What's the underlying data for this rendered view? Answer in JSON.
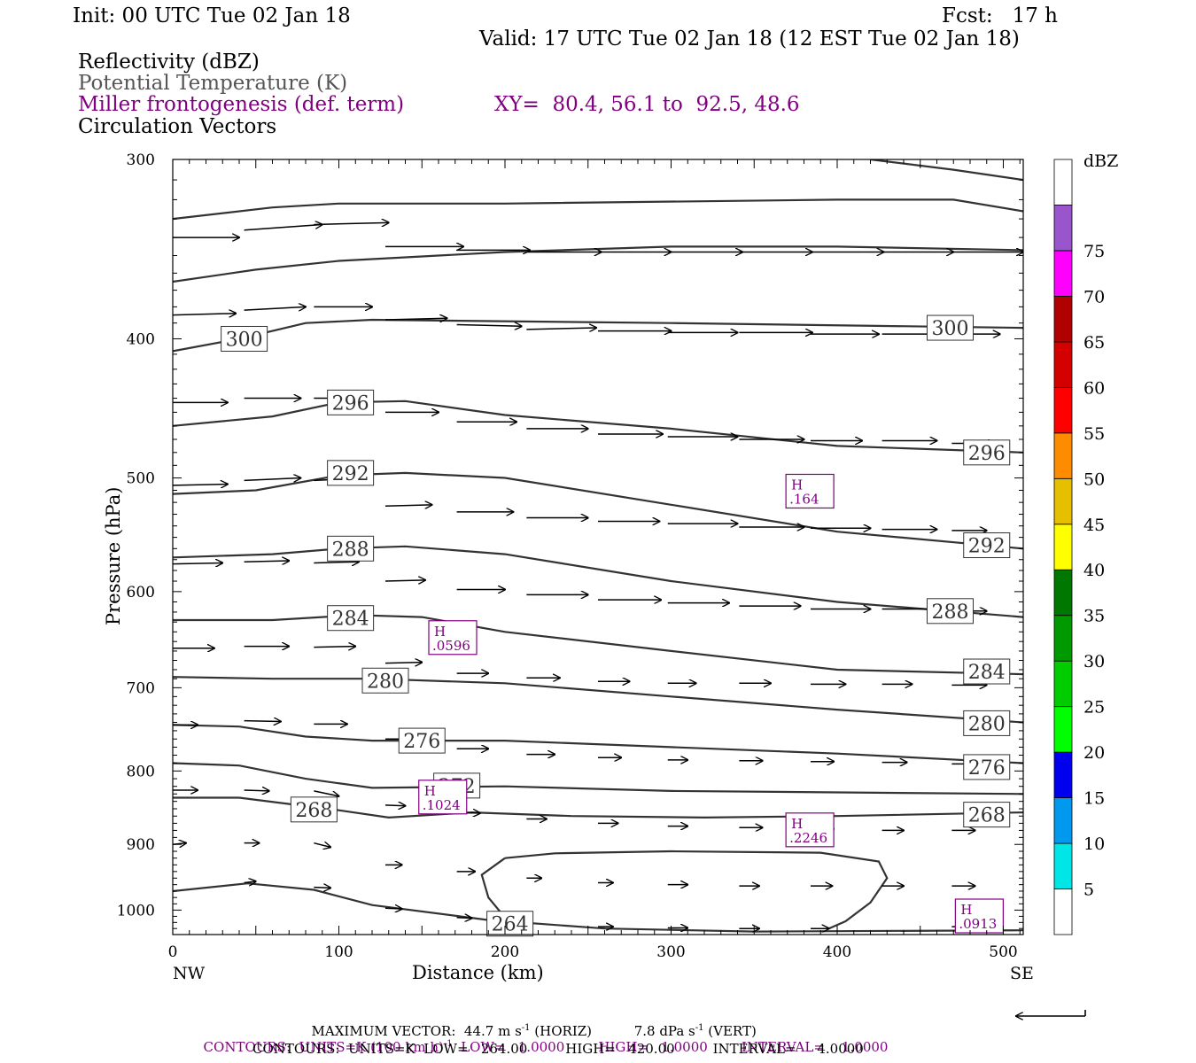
{
  "header": {
    "init": "Init: 00 UTC Tue 02 Jan 18",
    "fcst": "Fcst:   17 h",
    "valid": "Valid: 17 UTC Tue 02 Jan 18 (12 EST Tue 02 Jan 18)",
    "field1": "Reflectivity (dBZ)",
    "field2": "Potential Temperature (K)",
    "field3": "Miller frontogenesis (def. term)",
    "xy": "XY=  80.4, 56.1 to  92.5, 48.6",
    "field4": "Circulation Vectors"
  },
  "footer": {
    "max_vector_prefix": "MAXIMUM VECTOR:  44.7 m s",
    "max_vector_mid": " (HORIZ)          7.8 dPa s",
    "max_vector_suffix": " (VERT)",
    "max_vector_exp": "-1",
    "contours1_prefix": "CONTOURS:  UNITS=K (100 km h)",
    "contours1_exp": "-1",
    "contours1_suffix": "  LOW=   1.0000        HIGH=   1.0000        INTERVAL=    1.0000",
    "contours2": "CONTOURS:  UNITS=K  LOW=   264.00         HIGH=   420.00         INTERVAL=     4.0000"
  },
  "chart_data": {
    "type": "cross-section",
    "xlabel": "Distance (km)",
    "ylabel": "Pressure (hPa)",
    "xlim": [
      0,
      512
    ],
    "ylim": [
      1040,
      300
    ],
    "y_scale": "log",
    "x_ticks": [
      0,
      100,
      200,
      300,
      400,
      500
    ],
    "y_ticks": [
      300,
      400,
      500,
      600,
      700,
      800,
      900,
      1000
    ],
    "x_end_labels": {
      "left": "NW",
      "right": "SE"
    },
    "colorbar": {
      "title": "dBZ",
      "labels": [
        "5",
        "10",
        "15",
        "20",
        "25",
        "30",
        "35",
        "40",
        "45",
        "50",
        "55",
        "60",
        "65",
        "70",
        "75"
      ],
      "colors": [
        "#ffffff",
        "#00e5e5",
        "#0099ee",
        "#0000ee",
        "#00ff00",
        "#00cc00",
        "#009900",
        "#007700",
        "#ffff00",
        "#e6bf00",
        "#ff8c00",
        "#ff0000",
        "#d40000",
        "#b00000",
        "#ff00ff",
        "#9955cc",
        "#ffffff"
      ]
    },
    "isentropes": [
      {
        "theta": 268,
        "points": [
          [
            0,
            835
          ],
          [
            40,
            835
          ],
          [
            100,
            852
          ],
          [
            130,
            862
          ],
          [
            180,
            855
          ],
          [
            240,
            860
          ],
          [
            320,
            862
          ],
          [
            400,
            860
          ],
          [
            512,
            855
          ]
        ]
      },
      {
        "theta": 272,
        "points": [
          [
            0,
            790
          ],
          [
            40,
            793
          ],
          [
            80,
            810
          ],
          [
            120,
            822
          ],
          [
            200,
            820
          ],
          [
            300,
            826
          ],
          [
            512,
            830
          ]
        ]
      },
      {
        "theta": 276,
        "points": [
          [
            0,
            743
          ],
          [
            40,
            745
          ],
          [
            80,
            757
          ],
          [
            120,
            762
          ],
          [
            200,
            762
          ],
          [
            300,
            770
          ],
          [
            400,
            778
          ],
          [
            512,
            790
          ]
        ]
      },
      {
        "theta": 280,
        "points": [
          [
            0,
            688
          ],
          [
            60,
            690
          ],
          [
            120,
            690
          ],
          [
            200,
            695
          ],
          [
            300,
            710
          ],
          [
            400,
            725
          ],
          [
            512,
            740
          ]
        ]
      },
      {
        "theta": 284,
        "points": [
          [
            0,
            628
          ],
          [
            60,
            628
          ],
          [
            110,
            623
          ],
          [
            150,
            625
          ],
          [
            200,
            640
          ],
          [
            300,
            660
          ],
          [
            400,
            680
          ],
          [
            512,
            685
          ]
        ]
      },
      {
        "theta": 288,
        "points": [
          [
            0,
            568
          ],
          [
            60,
            565
          ],
          [
            100,
            560
          ],
          [
            140,
            558
          ],
          [
            200,
            565
          ],
          [
            300,
            590
          ],
          [
            400,
            610
          ],
          [
            512,
            625
          ]
        ]
      },
      {
        "theta": 292,
        "points": [
          [
            0,
            513
          ],
          [
            50,
            510
          ],
          [
            100,
            498
          ],
          [
            140,
            496
          ],
          [
            200,
            500
          ],
          [
            300,
            522
          ],
          [
            400,
            545
          ],
          [
            512,
            560
          ]
        ]
      },
      {
        "theta": 296,
        "points": [
          [
            0,
            460
          ],
          [
            60,
            453
          ],
          [
            100,
            443
          ],
          [
            140,
            442
          ],
          [
            200,
            452
          ],
          [
            300,
            462
          ],
          [
            400,
            475
          ],
          [
            512,
            480
          ]
        ]
      },
      {
        "theta": 300,
        "points": [
          [
            0,
            408
          ],
          [
            40,
            400
          ],
          [
            80,
            390
          ],
          [
            120,
            388
          ],
          [
            300,
            390
          ],
          [
            512,
            393
          ]
        ]
      },
      {
        "theta": 304,
        "points": [
          [
            0,
            365
          ],
          [
            50,
            358
          ],
          [
            100,
            353
          ],
          [
            200,
            348
          ],
          [
            300,
            345
          ],
          [
            400,
            345
          ],
          [
            512,
            347
          ]
        ]
      },
      {
        "theta": 308,
        "points": [
          [
            0,
            330
          ],
          [
            60,
            324
          ],
          [
            100,
            322
          ],
          [
            200,
            322
          ],
          [
            400,
            320
          ],
          [
            470,
            320
          ],
          [
            512,
            326
          ]
        ]
      },
      {
        "theta": 312,
        "points": [
          [
            420,
            300
          ],
          [
            470,
            305
          ],
          [
            512,
            310
          ]
        ]
      },
      {
        "theta": 264,
        "points": [
          [
            0,
            970
          ],
          [
            45,
            958
          ],
          [
            85,
            968
          ],
          [
            120,
            992
          ],
          [
            190,
            1016
          ],
          [
            260,
            1030
          ],
          [
            350,
            1035
          ],
          [
            512,
            1033
          ]
        ]
      },
      {
        "theta": 264,
        "points": [
          [
            200,
            920
          ],
          [
            230,
            913
          ],
          [
            300,
            910
          ],
          [
            390,
            912
          ],
          [
            425,
            925
          ],
          [
            430,
            950
          ],
          [
            420,
            988
          ],
          [
            405,
            1018
          ],
          [
            395,
            1030
          ]
        ]
      },
      {
        "theta": 264,
        "points": [
          [
            200,
            920
          ],
          [
            186,
            945
          ],
          [
            190,
            980
          ],
          [
            200,
            1012
          ]
        ]
      }
    ],
    "isentrope_labels": [
      {
        "text": "300",
        "x": 43,
        "p": 400
      },
      {
        "text": "300",
        "x": 468,
        "p": 393
      },
      {
        "text": "296",
        "x": 107,
        "p": 443
      },
      {
        "text": "296",
        "x": 490,
        "p": 480
      },
      {
        "text": "292",
        "x": 107,
        "p": 496
      },
      {
        "text": "292",
        "x": 490,
        "p": 557
      },
      {
        "text": "288",
        "x": 107,
        "p": 560
      },
      {
        "text": "288",
        "x": 468,
        "p": 619
      },
      {
        "text": "284",
        "x": 107,
        "p": 626
      },
      {
        "text": "284",
        "x": 490,
        "p": 682
      },
      {
        "text": "280",
        "x": 128,
        "p": 692
      },
      {
        "text": "280",
        "x": 490,
        "p": 741
      },
      {
        "text": "276",
        "x": 150,
        "p": 762
      },
      {
        "text": "276",
        "x": 490,
        "p": 795
      },
      {
        "text": "272",
        "x": 171,
        "p": 819
      },
      {
        "text": "268",
        "x": 85,
        "p": 851
      },
      {
        "text": "268",
        "x": 490,
        "p": 858
      },
      {
        "text": "264",
        "x": 203,
        "p": 1022
      }
    ],
    "frontogenesis_highs": [
      {
        "label": "H",
        "value": ".164",
        "x": 383,
        "p": 510
      },
      {
        "label": "H",
        "value": ".0596",
        "x": 168,
        "p": 645
      },
      {
        "label": "H",
        "value": ".1024",
        "x": 162,
        "p": 833
      },
      {
        "label": "H",
        "value": ".2246",
        "x": 383,
        "p": 878
      },
      {
        "label": "H",
        "value": ".0913",
        "x": 485,
        "p": 1008
      }
    ],
    "vectors": [
      [
        0,
        340,
        40,
        340
      ],
      [
        43,
        336,
        90,
        333
      ],
      [
        85,
        333,
        130,
        332
      ],
      [
        128,
        345,
        175,
        345
      ],
      [
        171,
        347,
        215,
        347
      ],
      [
        213,
        348,
        258,
        348
      ],
      [
        256,
        348,
        300,
        348
      ],
      [
        298,
        348,
        343,
        348
      ],
      [
        341,
        348,
        385,
        348
      ],
      [
        384,
        348,
        428,
        348
      ],
      [
        427,
        348,
        470,
        348
      ],
      [
        469,
        348,
        512,
        348
      ],
      [
        0,
        385,
        38,
        384
      ],
      [
        43,
        382,
        80,
        380
      ],
      [
        85,
        380,
        120,
        380
      ],
      [
        128,
        388,
        165,
        387
      ],
      [
        171,
        391,
        210,
        392
      ],
      [
        213,
        394,
        255,
        393
      ],
      [
        256,
        395,
        300,
        395
      ],
      [
        298,
        396,
        340,
        396
      ],
      [
        341,
        396,
        385,
        396
      ],
      [
        384,
        397,
        425,
        397
      ],
      [
        427,
        397,
        470,
        397
      ],
      [
        469,
        397,
        498,
        397
      ],
      [
        0,
        443,
        33,
        443
      ],
      [
        43,
        440,
        77,
        440
      ],
      [
        85,
        440,
        120,
        440
      ],
      [
        128,
        450,
        160,
        450
      ],
      [
        171,
        457,
        207,
        457
      ],
      [
        213,
        462,
        250,
        462
      ],
      [
        256,
        466,
        295,
        466
      ],
      [
        298,
        468,
        340,
        468
      ],
      [
        341,
        470,
        380,
        470
      ],
      [
        384,
        471,
        415,
        471
      ],
      [
        427,
        471,
        460,
        471
      ],
      [
        469,
        473,
        495,
        473
      ],
      [
        0,
        506,
        33,
        505
      ],
      [
        43,
        502,
        77,
        500
      ],
      [
        85,
        502,
        120,
        500
      ],
      [
        128,
        523,
        156,
        522
      ],
      [
        171,
        528,
        205,
        528
      ],
      [
        213,
        533,
        250,
        533
      ],
      [
        256,
        536,
        293,
        536
      ],
      [
        298,
        538,
        340,
        538
      ],
      [
        341,
        541,
        380,
        541
      ],
      [
        384,
        542,
        420,
        542
      ],
      [
        427,
        543,
        460,
        543
      ],
      [
        469,
        544,
        490,
        544
      ],
      [
        0,
        574,
        30,
        573
      ],
      [
        43,
        572,
        70,
        571
      ],
      [
        85,
        573,
        112,
        572
      ],
      [
        128,
        590,
        152,
        589
      ],
      [
        171,
        598,
        200,
        598
      ],
      [
        213,
        603,
        250,
        603
      ],
      [
        256,
        608,
        294,
        608
      ],
      [
        298,
        611,
        335,
        611
      ],
      [
        341,
        614,
        378,
        614
      ],
      [
        384,
        617,
        420,
        617
      ],
      [
        427,
        617,
        465,
        617
      ],
      [
        469,
        619,
        490,
        619
      ],
      [
        0,
        657,
        25,
        657
      ],
      [
        43,
        655,
        70,
        655
      ],
      [
        85,
        656,
        110,
        655
      ],
      [
        128,
        673,
        150,
        672
      ],
      [
        171,
        684,
        190,
        684
      ],
      [
        213,
        689,
        233,
        689
      ],
      [
        256,
        693,
        275,
        693
      ],
      [
        298,
        695,
        315,
        695
      ],
      [
        341,
        695,
        360,
        695
      ],
      [
        384,
        696,
        405,
        696
      ],
      [
        427,
        696,
        445,
        696
      ],
      [
        469,
        697,
        490,
        697
      ],
      [
        0,
        743,
        15,
        743
      ],
      [
        43,
        738,
        65,
        739
      ],
      [
        85,
        742,
        105,
        742
      ],
      [
        128,
        760,
        148,
        760
      ],
      [
        171,
        772,
        190,
        772
      ],
      [
        213,
        779,
        230,
        779
      ],
      [
        256,
        783,
        270,
        783
      ],
      [
        298,
        786,
        310,
        786
      ],
      [
        341,
        787,
        355,
        787
      ],
      [
        384,
        788,
        398,
        788
      ],
      [
        427,
        789,
        442,
        789
      ],
      [
        469,
        791,
        485,
        791
      ],
      [
        0,
        825,
        15,
        825
      ],
      [
        43,
        825,
        58,
        826
      ],
      [
        85,
        826,
        100,
        833
      ],
      [
        128,
        845,
        140,
        846
      ],
      [
        171,
        855,
        185,
        856
      ],
      [
        213,
        864,
        225,
        864
      ],
      [
        256,
        870,
        268,
        870
      ],
      [
        298,
        874,
        310,
        874
      ],
      [
        341,
        876,
        355,
        876
      ],
      [
        384,
        878,
        398,
        878
      ],
      [
        427,
        880,
        440,
        880
      ],
      [
        469,
        880,
        483,
        880
      ],
      [
        0,
        900,
        8,
        898
      ],
      [
        43,
        898,
        52,
        898
      ],
      [
        85,
        898,
        95,
        904
      ],
      [
        128,
        930,
        138,
        930
      ],
      [
        171,
        940,
        182,
        940
      ],
      [
        213,
        950,
        222,
        950
      ],
      [
        256,
        957,
        265,
        957
      ],
      [
        298,
        960,
        310,
        960
      ],
      [
        341,
        962,
        353,
        962
      ],
      [
        384,
        962,
        397,
        962
      ],
      [
        427,
        962,
        440,
        962
      ],
      [
        469,
        962,
        483,
        962
      ],
      [
        43,
        957,
        50,
        955
      ],
      [
        85,
        964,
        95,
        965
      ],
      [
        128,
        997,
        138,
        998
      ],
      [
        171,
        1012,
        180,
        1013
      ],
      [
        256,
        1027,
        265,
        1027
      ],
      [
        298,
        1029,
        310,
        1029
      ],
      [
        341,
        1030,
        353,
        1030
      ],
      [
        384,
        1030,
        395,
        1030
      ],
      [
        469,
        1027,
        480,
        1027
      ]
    ]
  }
}
